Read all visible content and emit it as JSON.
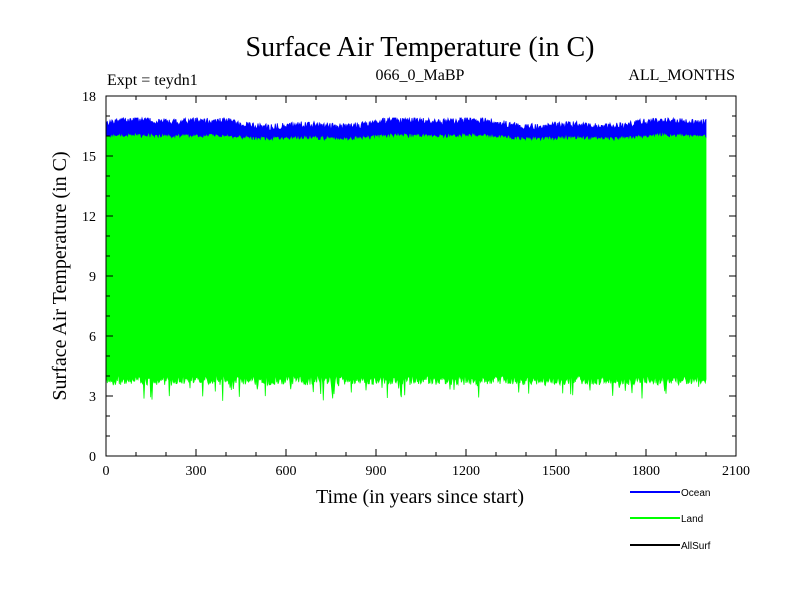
{
  "chart_data": {
    "type": "line",
    "title": "Surface Air Temperature (in C)",
    "subtitle_left": "Expt = teydn1",
    "subtitle_center": "066_0_MaBP",
    "subtitle_right": "ALL_MONTHS",
    "xlabel": "Time (in years since start)",
    "ylabel": "Surface Air Temperature (in C)",
    "xlim": [
      0,
      2100
    ],
    "ylim": [
      0,
      18
    ],
    "x_ticks": [
      "0",
      "300",
      "600",
      "900",
      "1200",
      "1500",
      "1800",
      "2100"
    ],
    "y_ticks": [
      "0",
      "3",
      "6",
      "9",
      "12",
      "15",
      "18"
    ],
    "x_range_of_data": [
      0,
      2000
    ],
    "series": [
      {
        "name": "Ocean",
        "color": "#0000ff",
        "min_approx": 15.6,
        "max_approx": 16.9,
        "mean_approx": 16.3
      },
      {
        "name": "Land",
        "color": "#00ff00",
        "min_approx": 2.5,
        "max_approx": 16.1,
        "low_envelope_approx": 3.8,
        "high_envelope_approx": 15.8
      },
      {
        "name": "AllSurf",
        "color": "#000000"
      }
    ]
  }
}
